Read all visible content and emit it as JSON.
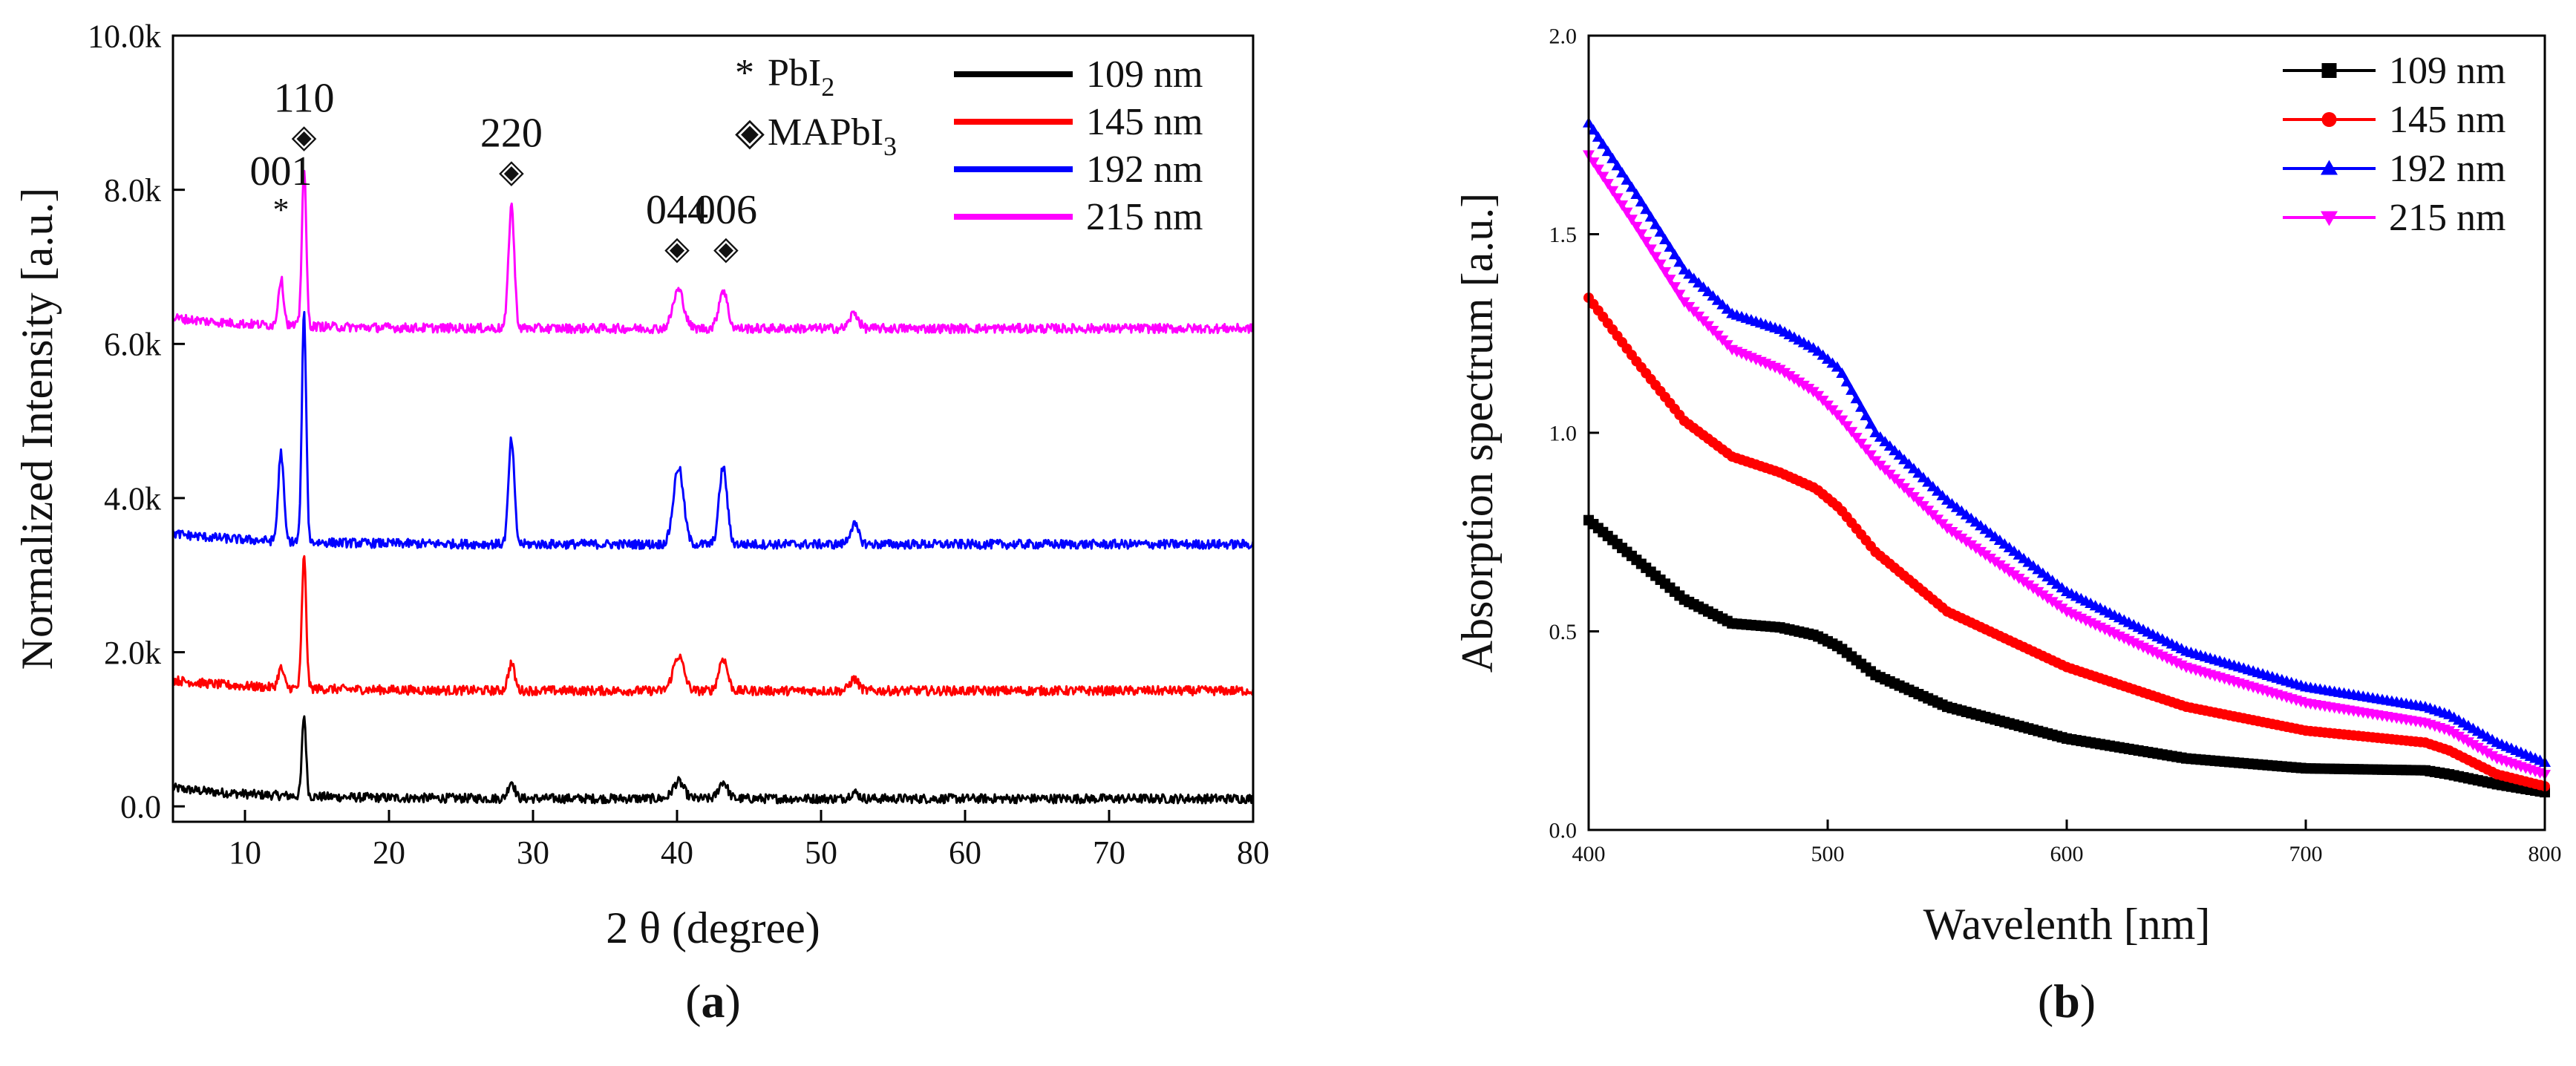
{
  "colors": {
    "s109": "#000000",
    "s145": "#ff0000",
    "s192": "#0000ff",
    "s215": "#ff00ff",
    "axis": "#000000",
    "background": "#ffffff"
  },
  "chart_data": [
    {
      "panel": "a",
      "caption_letter": "a",
      "type": "line",
      "title": "",
      "xlabel": "2 θ (degree)",
      "ylabel": "Normalized Intensity [a.u.]",
      "xlim": [
        5,
        80
      ],
      "ylim": [
        -0.2,
        10.0
      ],
      "xticks": [
        10,
        20,
        30,
        40,
        50,
        60,
        70,
        80
      ],
      "xtick_labels": [
        "10",
        "20",
        "30",
        "40",
        "50",
        "60",
        "70",
        "80"
      ],
      "yticks": [
        0,
        2,
        4,
        6,
        8,
        10
      ],
      "ytick_labels": [
        "0.0",
        "2.0k",
        "4.0k",
        "6.0k",
        "8.0k",
        "10.0k"
      ],
      "grid": false,
      "legend_position": "top-right",
      "legend_notes": [
        {
          "symbol": "*",
          "text": "PbI",
          "sub": "2"
        },
        {
          "symbol": "◈",
          "text": "MAPbI",
          "sub": "3"
        }
      ],
      "series": [
        {
          "name": "109 nm",
          "color_key": "s109",
          "baseline": 0.1,
          "peaks": [
            [
              14.1,
              1.05,
              0.28
            ],
            [
              28.5,
              0.22,
              0.45
            ],
            [
              40.1,
              0.22,
              0.75
            ],
            [
              43.2,
              0.22,
              0.6
            ],
            [
              52.3,
              0.08,
              0.6
            ]
          ]
        },
        {
          "name": "145 nm",
          "color_key": "s145",
          "baseline": 1.5,
          "peaks": [
            [
              12.5,
              0.25,
              0.4
            ],
            [
              14.1,
              1.7,
              0.3
            ],
            [
              28.5,
              0.35,
              0.45
            ],
            [
              40.1,
              0.45,
              0.75
            ],
            [
              43.2,
              0.42,
              0.6
            ],
            [
              52.3,
              0.15,
              0.6
            ]
          ]
        },
        {
          "name": "192 nm",
          "color_key": "s192",
          "baseline": 3.4,
          "peaks": [
            [
              12.5,
              1.15,
              0.38
            ],
            [
              14.1,
              2.95,
              0.3
            ],
            [
              28.5,
              1.35,
              0.4
            ],
            [
              40.1,
              1.0,
              0.7
            ],
            [
              43.2,
              1.0,
              0.55
            ],
            [
              52.3,
              0.25,
              0.6
            ]
          ]
        },
        {
          "name": "215 nm",
          "color_key": "s215",
          "baseline": 6.2,
          "peaks": [
            [
              12.5,
              0.6,
              0.38
            ],
            [
              14.1,
              2.05,
              0.3
            ],
            [
              28.5,
              1.6,
              0.4
            ],
            [
              40.1,
              0.5,
              0.75
            ],
            [
              43.2,
              0.5,
              0.6
            ],
            [
              52.3,
              0.2,
              0.6
            ]
          ]
        }
      ],
      "peak_annotations": [
        {
          "x": 12.5,
          "y": 7.6,
          "label": "001",
          "marker": "*"
        },
        {
          "x": 14.1,
          "y": 8.55,
          "label": "110",
          "marker": "◈"
        },
        {
          "x": 28.5,
          "y": 8.1,
          "label": "220",
          "marker": "◈"
        },
        {
          "x": 40.0,
          "y": 7.1,
          "label": "044",
          "marker": "◈"
        },
        {
          "x": 43.4,
          "y": 7.1,
          "label": "006",
          "marker": "◈"
        }
      ]
    },
    {
      "panel": "b",
      "caption_letter": "b",
      "type": "line",
      "title": "",
      "xlabel": "Wavelenth [nm]",
      "ylabel": "Absorption spectrum [a.u.]",
      "xlim": [
        400,
        800
      ],
      "ylim": [
        0,
        2.0
      ],
      "xticks": [
        400,
        500,
        600,
        700,
        800
      ],
      "xtick_labels": [
        "400",
        "500",
        "600",
        "700",
        "800"
      ],
      "yticks": [
        0,
        0.5,
        1.0,
        1.5,
        2.0
      ],
      "ytick_labels": [
        "0.0",
        "0.5",
        "1.0",
        "1.5",
        "2.0"
      ],
      "grid": false,
      "legend_position": "top-right",
      "series": [
        {
          "name": "109 nm",
          "color_key": "s109",
          "marker": "square",
          "points": [
            [
              400,
              0.78
            ],
            [
              420,
              0.68
            ],
            [
              440,
              0.58
            ],
            [
              460,
              0.52
            ],
            [
              480,
              0.51
            ],
            [
              495,
              0.49
            ],
            [
              505,
              0.46
            ],
            [
              520,
              0.39
            ],
            [
              550,
              0.31
            ],
            [
              600,
              0.23
            ],
            [
              650,
              0.18
            ],
            [
              700,
              0.155
            ],
            [
              750,
              0.15
            ],
            [
              760,
              0.14
            ],
            [
              780,
              0.115
            ],
            [
              800,
              0.095
            ]
          ]
        },
        {
          "name": "145 nm",
          "color_key": "s145",
          "marker": "circle",
          "points": [
            [
              400,
              1.34
            ],
            [
              420,
              1.18
            ],
            [
              440,
              1.03
            ],
            [
              460,
              0.94
            ],
            [
              480,
              0.9
            ],
            [
              495,
              0.86
            ],
            [
              505,
              0.81
            ],
            [
              520,
              0.7
            ],
            [
              550,
              0.55
            ],
            [
              600,
              0.41
            ],
            [
              650,
              0.31
            ],
            [
              700,
              0.25
            ],
            [
              750,
              0.22
            ],
            [
              760,
              0.2
            ],
            [
              780,
              0.14
            ],
            [
              800,
              0.11
            ]
          ]
        },
        {
          "name": "192 nm",
          "color_key": "s192",
          "marker": "triangle-up",
          "points": [
            [
              400,
              1.78
            ],
            [
              420,
              1.6
            ],
            [
              440,
              1.41
            ],
            [
              460,
              1.3
            ],
            [
              480,
              1.26
            ],
            [
              495,
              1.21
            ],
            [
              505,
              1.16
            ],
            [
              520,
              1.0
            ],
            [
              550,
              0.83
            ],
            [
              600,
              0.6
            ],
            [
              650,
              0.45
            ],
            [
              700,
              0.36
            ],
            [
              750,
              0.31
            ],
            [
              760,
              0.29
            ],
            [
              780,
              0.22
            ],
            [
              800,
              0.17
            ]
          ]
        },
        {
          "name": "215 nm",
          "color_key": "s215",
          "marker": "triangle-down",
          "points": [
            [
              400,
              1.7
            ],
            [
              420,
              1.52
            ],
            [
              440,
              1.33
            ],
            [
              460,
              1.21
            ],
            [
              480,
              1.16
            ],
            [
              495,
              1.1
            ],
            [
              505,
              1.04
            ],
            [
              520,
              0.93
            ],
            [
              550,
              0.76
            ],
            [
              600,
              0.55
            ],
            [
              650,
              0.41
            ],
            [
              700,
              0.32
            ],
            [
              750,
              0.27
            ],
            [
              760,
              0.25
            ],
            [
              780,
              0.18
            ],
            [
              800,
              0.14
            ]
          ]
        }
      ]
    }
  ]
}
